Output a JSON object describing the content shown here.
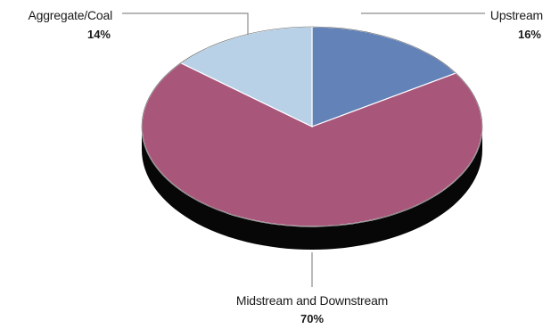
{
  "chart_data": {
    "type": "pie",
    "style": "3d-tilted",
    "labels": [
      "Upstream",
      "Midstream and Downstream",
      "Aggregate/Coal"
    ],
    "values": [
      16,
      70,
      14
    ],
    "value_labels": [
      "16%",
      "70%",
      "14%"
    ],
    "colors": [
      "#6282b8",
      "#a8567a",
      "#b8d1e6"
    ],
    "start_angle_deg": -90,
    "direction": "clockwise",
    "legend": "none"
  }
}
